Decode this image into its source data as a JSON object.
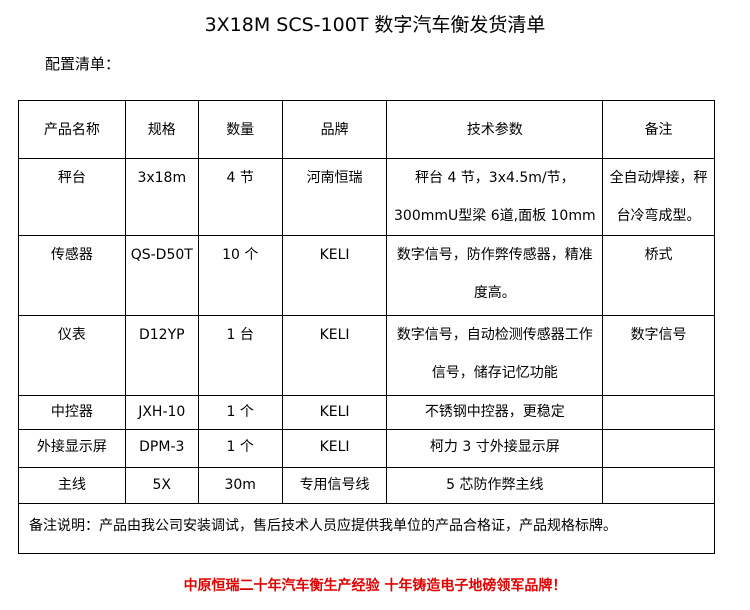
{
  "title": "3X18M SCS-100T 数字汽车衡发货清单",
  "subtitle": "配置清单：",
  "headers": [
    "产品名称",
    "规格",
    "数量",
    "品牌",
    "技术参数",
    "备注"
  ],
  "rows": [
    [
      "秤台",
      "3x18m",
      "4 节",
      "河南恒瑞",
      "秤台 4 节，3x4.5m/节，300mmU型梁 6道,面板 10mm",
      "全自动焊接，秤台冷弯成型。"
    ],
    [
      "传感器",
      "QS-D50T",
      "10 个",
      "KELI",
      "数字信号，防作弊传感器，精准度高。",
      "桥式"
    ],
    [
      "仪表",
      "D12YP",
      "1 台",
      "KELI",
      "数字信号，自动检测传感器工作信号，储存记忆功能",
      "数字信号"
    ],
    [
      "中控器",
      "JXH-10",
      "1 个",
      "KELI",
      "不锈钢中控器，更稳定",
      ""
    ],
    [
      "外接显示屏",
      "DPM-3",
      "1 个",
      "KELI",
      "柯力 3 寸外接显示屏",
      ""
    ],
    [
      "主线",
      "5X",
      "30m",
      "专用信号线",
      "5 芯防作弊主线",
      ""
    ]
  ],
  "note": "备注说明：产品由我公司安装调试，售后技术人员应提供我单位的产品合格证，产品规格标牌。",
  "footer": "中原恒瑞二十年汽车衡生产经验 十年铸造电子地磅领军品牌！"
}
